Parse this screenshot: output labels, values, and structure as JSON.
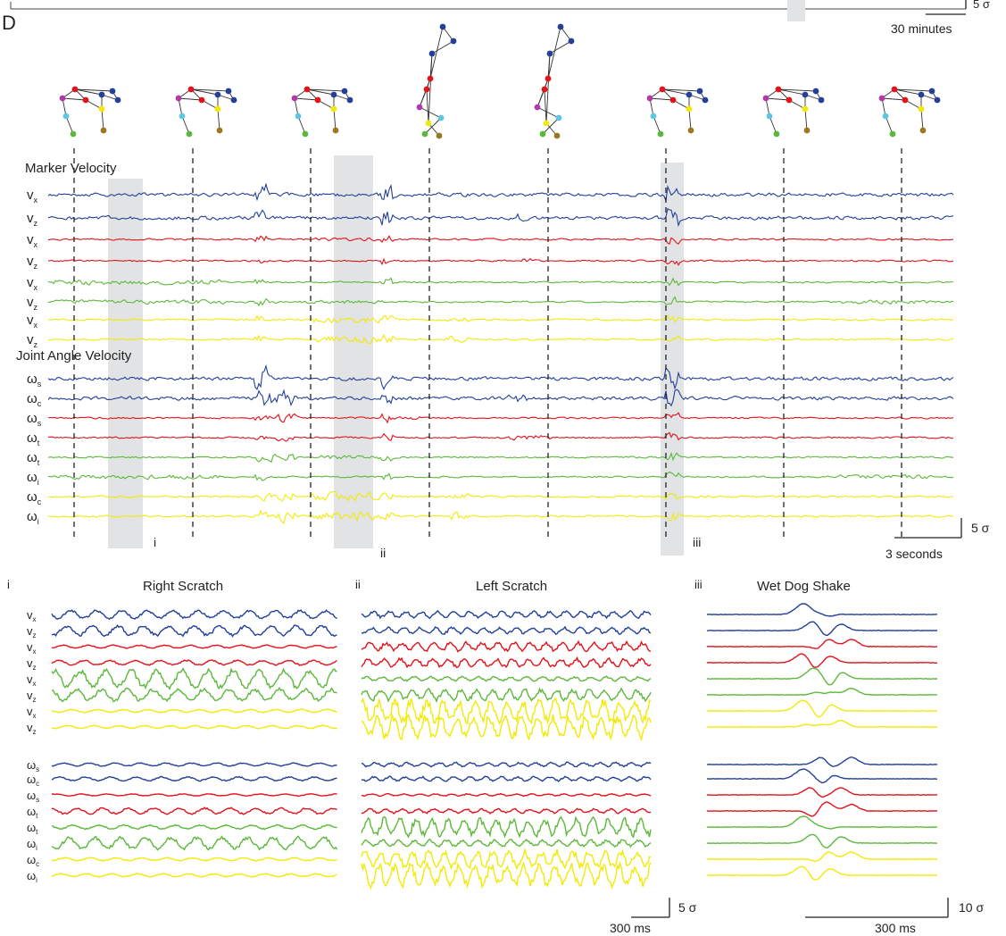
{
  "panel_letter": "D",
  "top_scalebar": {
    "time_label": "30 minutes",
    "amp_label": "5 σ"
  },
  "main": {
    "marker_title": "Marker Velocity",
    "joint_title": "Joint Angle Velocity",
    "time_scale_label": "3 seconds",
    "amp_scale_label": "5 σ",
    "event_labels": [
      "i",
      "ii",
      "iii"
    ]
  },
  "subpanels": [
    {
      "index": "i",
      "title": "Right Scratch"
    },
    {
      "index": "ii",
      "title": "Left Scratch"
    },
    {
      "index": "iii",
      "title": "Wet Dog Shake"
    }
  ],
  "bottom_scalebars": {
    "left_amp": "5 σ",
    "left_time": "300 ms",
    "right_amp": "10 σ",
    "right_time": "300 ms"
  },
  "colors": {
    "blue": "#233f9a",
    "red": "#e3121b",
    "green": "#5cb83a",
    "yellow": "#f2ea05",
    "shade": "#e1e3e4",
    "magenta": "#b23aa6",
    "cyan": "#5ec6e0",
    "brown": "#9a7a1e"
  },
  "chart_data": [
    {
      "type": "line",
      "title": "",
      "series": [
        {
          "name": "v",
          "subscript": "x",
          "color": "blue"
        },
        {
          "name": "v",
          "subscript": "z",
          "color": "blue"
        },
        {
          "name": "v",
          "subscript": "x",
          "color": "red"
        },
        {
          "name": "v",
          "subscript": "z",
          "color": "red"
        },
        {
          "name": "v",
          "subscript": "x",
          "color": "green"
        },
        {
          "name": "v",
          "subscript": "z",
          "color": "green"
        },
        {
          "name": "v",
          "subscript": "x",
          "color": "yellow"
        },
        {
          "name": "v",
          "subscript": "z",
          "color": "yellow"
        },
        {
          "name": "ω",
          "subscript": "s",
          "color": "blue"
        },
        {
          "name": "ω",
          "subscript": "c",
          "color": "blue"
        },
        {
          "name": "ω",
          "subscript": "s",
          "color": "red"
        },
        {
          "name": "ω",
          "subscript": "t",
          "color": "red"
        },
        {
          "name": "ω",
          "subscript": "t",
          "color": "green"
        },
        {
          "name": "ω",
          "subscript": "i",
          "color": "green"
        },
        {
          "name": "ω",
          "subscript": "c",
          "color": "yellow"
        },
        {
          "name": "ω",
          "subscript": "i",
          "color": "yellow"
        }
      ]
    },
    {
      "type": "line",
      "title": "Right Scratch",
      "series": [
        {
          "name": "v",
          "subscript": "x",
          "color": "blue"
        },
        {
          "name": "v",
          "subscript": "z",
          "color": "blue"
        },
        {
          "name": "v",
          "subscript": "x",
          "color": "red"
        },
        {
          "name": "v",
          "subscript": "z",
          "color": "red"
        },
        {
          "name": "v",
          "subscript": "x",
          "color": "green"
        },
        {
          "name": "v",
          "subscript": "z",
          "color": "green"
        },
        {
          "name": "v",
          "subscript": "x",
          "color": "yellow"
        },
        {
          "name": "v",
          "subscript": "z",
          "color": "yellow"
        },
        {
          "name": "ω",
          "subscript": "s",
          "color": "blue"
        },
        {
          "name": "ω",
          "subscript": "c",
          "color": "blue"
        },
        {
          "name": "ω",
          "subscript": "s",
          "color": "red"
        },
        {
          "name": "ω",
          "subscript": "t",
          "color": "red"
        },
        {
          "name": "ω",
          "subscript": "t",
          "color": "green"
        },
        {
          "name": "ω",
          "subscript": "i",
          "color": "green"
        },
        {
          "name": "ω",
          "subscript": "c",
          "color": "yellow"
        },
        {
          "name": "ω",
          "subscript": "i",
          "color": "yellow"
        }
      ]
    },
    {
      "type": "line",
      "title": "Left Scratch"
    },
    {
      "type": "line",
      "title": "Wet Dog Shake"
    }
  ]
}
